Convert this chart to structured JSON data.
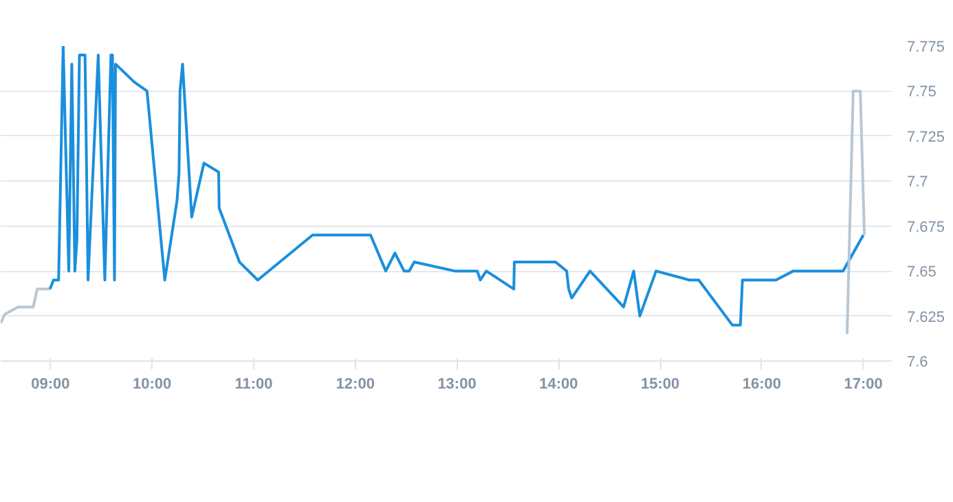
{
  "chart_data": {
    "type": "line",
    "xlim": [
      8.51,
      17.28
    ],
    "ylim": [
      7.6,
      7.775
    ],
    "xticks": [
      {
        "value": 9,
        "label": "09:00"
      },
      {
        "value": 10,
        "label": "10:00"
      },
      {
        "value": 11,
        "label": "11:00"
      },
      {
        "value": 12,
        "label": "12:00"
      },
      {
        "value": 13,
        "label": "13:00"
      },
      {
        "value": 14,
        "label": "14:00"
      },
      {
        "value": 15,
        "label": "15:00"
      },
      {
        "value": 16,
        "label": "16:00"
      },
      {
        "value": 17,
        "label": "17:00"
      }
    ],
    "yticks": [
      7.6,
      7.625,
      {
        "value": 7.65,
        "label": "7.65"
      },
      7.675,
      {
        "value": 7.7,
        "label": "7.7"
      },
      7.725,
      {
        "value": 7.75,
        "label": "7.75"
      },
      7.775
    ],
    "grid": "y",
    "marker": "none",
    "line_style": "solid",
    "series": [
      {
        "color": "#b8c7d3",
        "x": [
          8.51,
          8.55,
          8.68,
          8.83,
          8.87,
          8.995
        ],
        "values": [
          7.621,
          7.626,
          7.63,
          7.63,
          7.64,
          7.64
        ]
      },
      {
        "color": "#1a8fdd",
        "x": [
          8.995,
          9.03,
          9.08,
          9.125,
          9.18,
          9.21,
          9.24,
          9.26,
          9.285,
          9.34,
          9.37,
          9.47,
          9.535,
          9.595,
          9.61,
          9.63,
          9.64,
          9.825,
          9.95,
          10.125,
          10.245,
          10.265,
          10.275,
          10.3,
          10.39,
          10.51,
          10.655,
          10.66,
          10.86,
          11.04,
          11.58,
          12.15,
          12.3,
          12.39,
          12.48,
          12.53,
          12.58,
          12.98,
          13.2,
          13.23,
          13.29,
          13.56,
          13.565,
          13.97,
          14.08,
          14.1,
          14.13,
          14.31,
          14.64,
          14.74,
          14.8,
          14.96,
          15.29,
          15.38,
          15.71,
          15.79,
          15.81,
          16.14,
          16.31,
          16.8,
          17.0
        ],
        "values": [
          7.64,
          7.645,
          7.645,
          7.775,
          7.65,
          7.765,
          7.65,
          7.667,
          7.77,
          7.77,
          7.645,
          7.77,
          7.645,
          7.77,
          7.77,
          7.645,
          7.765,
          7.755,
          7.75,
          7.645,
          7.689,
          7.704,
          7.75,
          7.765,
          7.68,
          7.71,
          7.705,
          7.685,
          7.655,
          7.645,
          7.67,
          7.67,
          7.65,
          7.66,
          7.65,
          7.65,
          7.655,
          7.65,
          7.65,
          7.645,
          7.65,
          7.64,
          7.655,
          7.655,
          7.65,
          7.64,
          7.635,
          7.65,
          7.63,
          7.65,
          7.625,
          7.65,
          7.645,
          7.645,
          7.62,
          7.62,
          7.645,
          7.645,
          7.65,
          7.65,
          7.67
        ]
      },
      {
        "color": "#b8c7d3",
        "x": [
          16.84,
          16.9,
          16.97,
          17.01
        ],
        "values": [
          7.615,
          7.75,
          7.75,
          7.67
        ]
      }
    ]
  }
}
